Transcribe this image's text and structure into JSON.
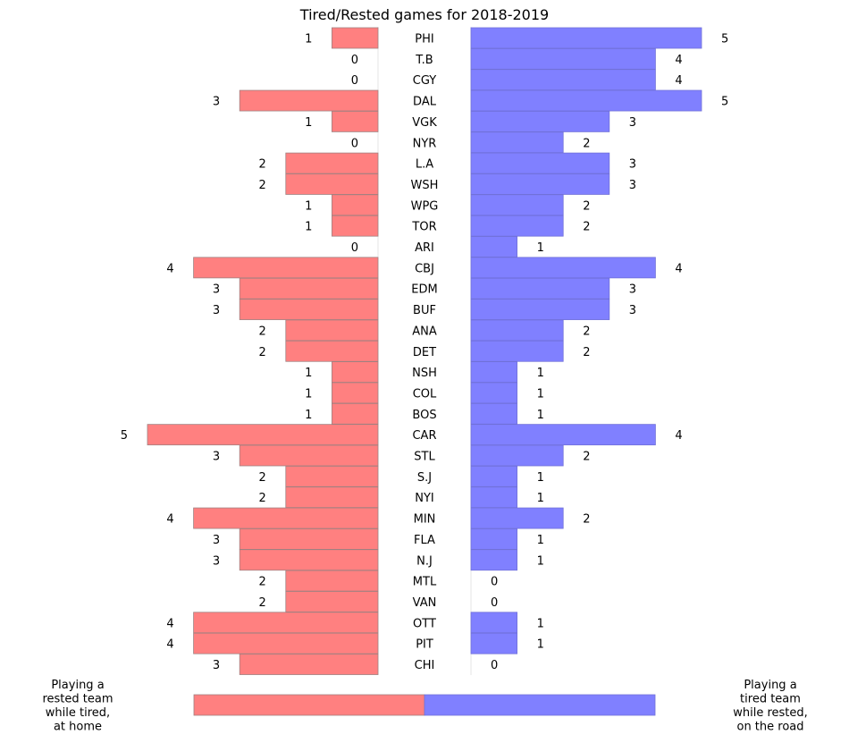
{
  "chart_data": {
    "type": "bar",
    "title": "Tired/Rested games for 2018-2019",
    "categories": [
      "PHI",
      "T.B",
      "CGY",
      "DAL",
      "VGK",
      "NYR",
      "L.A",
      "WSH",
      "WPG",
      "TOR",
      "ARI",
      "CBJ",
      "EDM",
      "BUF",
      "ANA",
      "DET",
      "NSH",
      "COL",
      "BOS",
      "CAR",
      "STL",
      "S.J",
      "NYI",
      "MIN",
      "FLA",
      "N.J",
      "MTL",
      "VAN",
      "OTT",
      "PIT",
      "CHI"
    ],
    "series": [
      {
        "name": "Playing a rested team while tired, at home",
        "values": [
          1,
          0,
          0,
          3,
          1,
          0,
          2,
          2,
          1,
          1,
          0,
          4,
          3,
          3,
          2,
          2,
          1,
          1,
          1,
          5,
          3,
          2,
          2,
          4,
          3,
          3,
          2,
          2,
          4,
          4,
          3
        ]
      },
      {
        "name": "Playing a tired team while rested, on the road",
        "values": [
          5,
          4,
          4,
          5,
          3,
          2,
          3,
          3,
          2,
          2,
          1,
          4,
          3,
          3,
          2,
          2,
          1,
          1,
          1,
          4,
          2,
          1,
          1,
          2,
          1,
          1,
          0,
          0,
          1,
          1,
          0
        ]
      }
    ],
    "colors": {
      "left": "#ff8080",
      "right": "#8080ff",
      "edge": "#a08080",
      "spine": "#e6e6e6"
    },
    "legend": {
      "left_label_lines": [
        "Playing a",
        "rested team",
        "while tired,",
        "at home"
      ],
      "right_label_lines": [
        "Playing a",
        "tired team",
        "while rested,",
        "on the road"
      ],
      "placement": "bottom"
    },
    "xlim": [
      0,
      5
    ]
  }
}
